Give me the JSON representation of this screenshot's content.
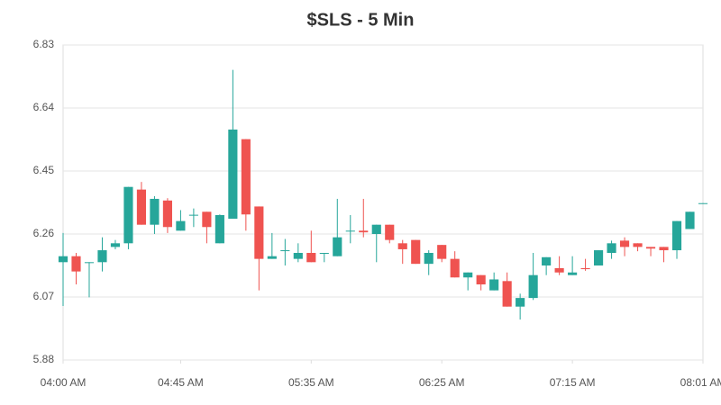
{
  "chart_data": {
    "type": "candlestick",
    "title": "$SLS - 5 Min",
    "open": [
      6.175,
      6.193,
      6.173,
      6.175,
      6.221,
      6.232,
      6.394,
      6.288,
      6.361,
      6.27,
      6.316,
      6.327,
      6.232,
      6.306,
      6.546,
      6.343,
      6.185,
      6.209,
      6.185,
      6.203,
      6.201,
      6.193,
      6.268,
      6.27,
      6.26,
      6.288,
      6.232,
      6.242,
      6.17,
      6.227,
      6.185,
      6.129,
      6.136,
      6.09,
      6.118,
      6.041,
      6.067,
      6.165,
      6.157,
      6.136,
      6.157,
      6.165,
      6.203,
      6.24,
      6.232,
      6.221,
      6.221,
      6.211,
      6.275,
      6.352
    ],
    "high": [
      6.263,
      6.203,
      6.175,
      6.25,
      6.242,
      6.402,
      6.417,
      6.374,
      6.368,
      6.332,
      6.337,
      6.327,
      6.319,
      6.755,
      6.546,
      6.343,
      6.263,
      6.245,
      6.232,
      6.27,
      6.203,
      6.366,
      6.317,
      6.366,
      6.288,
      6.288,
      6.242,
      6.242,
      6.211,
      6.227,
      6.208,
      6.144,
      6.136,
      6.144,
      6.144,
      6.08,
      6.203,
      6.19,
      6.193,
      6.193,
      6.185,
      6.211,
      6.24,
      6.25,
      6.232,
      6.221,
      6.221,
      6.299,
      6.327,
      6.353
    ],
    "low": [
      6.043,
      6.108,
      6.069,
      6.147,
      6.214,
      6.214,
      6.288,
      6.26,
      6.263,
      6.27,
      6.281,
      6.232,
      6.232,
      6.306,
      6.27,
      6.09,
      6.185,
      6.165,
      6.175,
      6.175,
      6.175,
      6.193,
      6.232,
      6.25,
      6.175,
      6.232,
      6.17,
      6.17,
      6.136,
      6.175,
      6.129,
      6.09,
      6.09,
      6.09,
      6.041,
      6.002,
      6.061,
      6.136,
      6.136,
      6.136,
      6.149,
      6.165,
      6.185,
      6.193,
      6.208,
      6.193,
      6.175,
      6.185,
      6.275,
      6.352
    ],
    "close": [
      6.193,
      6.147,
      6.175,
      6.211,
      6.232,
      6.402,
      6.288,
      6.366,
      6.281,
      6.299,
      6.318,
      6.281,
      6.317,
      6.575,
      6.319,
      6.185,
      6.193,
      6.211,
      6.203,
      6.175,
      6.203,
      6.25,
      6.27,
      6.265,
      6.288,
      6.242,
      6.214,
      6.17,
      6.203,
      6.185,
      6.129,
      6.144,
      6.108,
      6.123,
      6.041,
      6.067,
      6.136,
      6.19,
      6.144,
      6.144,
      6.154,
      6.211,
      6.232,
      6.221,
      6.221,
      6.216,
      6.211,
      6.299,
      6.327,
      6.353
    ],
    "up_color": "#26a69a",
    "down_color": "#ef5350",
    "xlim": [
      0,
      49
    ],
    "xticks": [
      {
        "value": 0,
        "label": "04:00 AM"
      },
      {
        "value": 9,
        "label": "04:45 AM"
      },
      {
        "value": 19,
        "label": "05:35 AM"
      },
      {
        "value": 29,
        "label": "06:25 AM"
      },
      {
        "value": 39,
        "label": "07:15 AM"
      },
      {
        "value": 49,
        "label": "08:01 AM"
      }
    ],
    "ylim": [
      5.88,
      6.83
    ],
    "yticks": [
      5.88,
      6.07,
      6.26,
      6.45,
      6.64,
      6.83
    ],
    "grid": true
  }
}
